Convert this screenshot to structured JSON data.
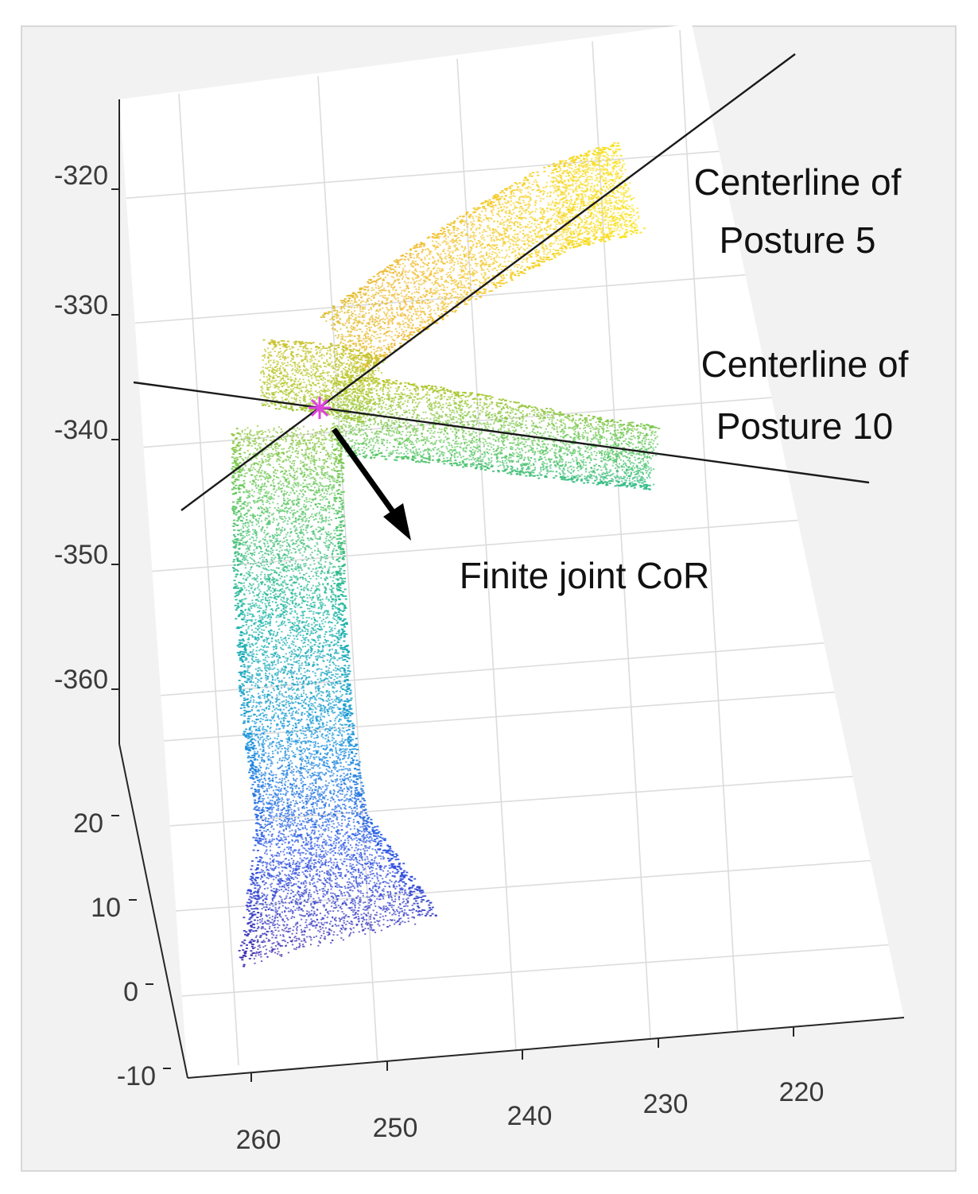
{
  "chart_data": {
    "type": "scatter",
    "dimensions": 3,
    "title": "",
    "xlabel": "",
    "ylabel": "",
    "zlabel": "",
    "grid": true,
    "x_ticks": [
      "260",
      "250",
      "240",
      "230",
      "220"
    ],
    "y_ticks": [
      "-10",
      "0",
      "10",
      "20"
    ],
    "z_ticks": [
      "-320",
      "-330",
      "-340",
      "-350",
      "-360"
    ],
    "colormap": "parula",
    "colormap_stops": [
      "#3e26a8",
      "#2e58e6",
      "#1a96db",
      "#18b4a6",
      "#5cc75e",
      "#b4c72a",
      "#f0ba32",
      "#f9e21a"
    ],
    "background": "#f2f2f2",
    "point_clouds": [
      {
        "segment": "upper-arm",
        "description_axis": "vertical shaft from low z to the joint"
      },
      {
        "segment": "forearm-posture-5",
        "description_axis": "raised toward upper right"
      },
      {
        "segment": "forearm-posture-10",
        "description_axis": "horizontal toward right"
      }
    ],
    "center_of_rotation_marker": {
      "symbol": "asterisk",
      "color": "#e040e0"
    },
    "annotations": [
      {
        "lines": [
          "Centerline of",
          "Posture 5"
        ]
      },
      {
        "lines": [
          "Centerline of",
          "Posture 10"
        ]
      },
      {
        "lines": [
          "Finite joint CoR"
        ]
      }
    ]
  }
}
